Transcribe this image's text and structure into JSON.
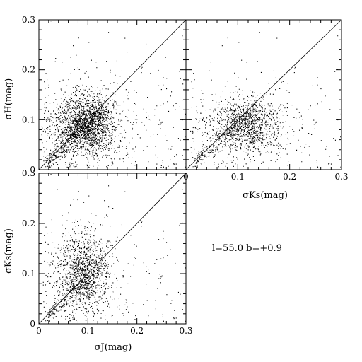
{
  "chart_data": [
    {
      "type": "scatter",
      "panel": "top-left",
      "xlabel": "",
      "ylabel": "σH(mag)",
      "xlim": [
        0,
        0.3
      ],
      "ylim": [
        0,
        0.3
      ],
      "xticks": [],
      "yticks": [
        "0",
        "0.1",
        "0.2",
        "0.3"
      ],
      "reference_line": "y = x",
      "cloud": {
        "center_x": 0.09,
        "center_y": 0.085,
        "spread_x": 0.035,
        "spread_y": 0.035,
        "count": 9000
      }
    },
    {
      "type": "scatter",
      "panel": "top-right",
      "xlabel": "σKs(mag)",
      "ylabel": "",
      "xlim": [
        0,
        0.3
      ],
      "ylim": [
        0,
        0.3
      ],
      "xticks": [
        "0",
        "0.1",
        "0.2",
        "0.3"
      ],
      "yticks": [],
      "reference_line": "y = x",
      "cloud": {
        "center_x": 0.11,
        "center_y": 0.085,
        "spread_x": 0.04,
        "spread_y": 0.03,
        "count": 9000
      }
    },
    {
      "type": "scatter",
      "panel": "bottom-left",
      "xlabel": "σJ(mag)",
      "ylabel": "σKs(mag)",
      "xlim": [
        0,
        0.3
      ],
      "ylim": [
        0,
        0.3
      ],
      "xticks": [
        "0",
        "0.1",
        "0.2",
        "0.3"
      ],
      "yticks": [
        "0",
        "0.1",
        "0.2",
        "0.3"
      ],
      "reference_line": "y = x",
      "cloud": {
        "center_x": 0.085,
        "center_y": 0.1,
        "spread_x": 0.03,
        "spread_y": 0.045,
        "count": 9000
      }
    }
  ],
  "annotation": "l=55.0 b=+0.9"
}
